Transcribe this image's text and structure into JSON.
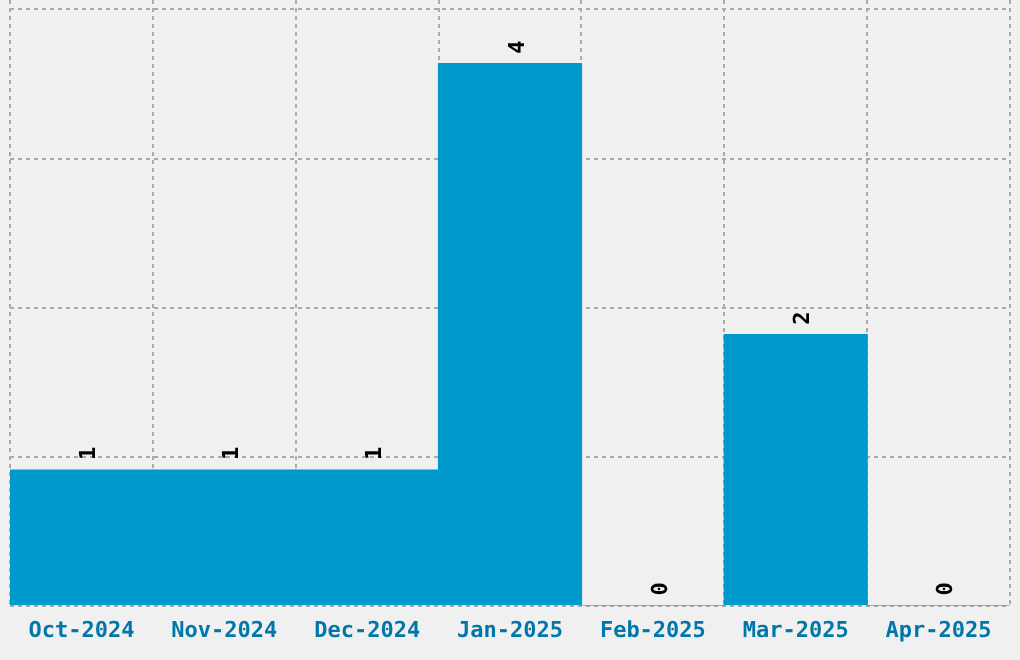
{
  "chart_data": {
    "type": "bar",
    "categories": [
      "Oct-2024",
      "Nov-2024",
      "Dec-2024",
      "Jan-2025",
      "Feb-2025",
      "Mar-2025",
      "Apr-2025"
    ],
    "values": [
      1,
      1,
      1,
      4,
      0,
      2,
      0
    ],
    "color": "#0099cc",
    "ylim": [
      0,
      4.47
    ],
    "yticks": [
      {
        "value": 0,
        "label": null
      },
      {
        "value": 1.1,
        "label": null
      },
      {
        "value": 2.2,
        "label": null
      },
      {
        "value": 3.3,
        "label": null
      },
      {
        "value": 4.4,
        "label": null
      }
    ],
    "tick_labels": "x",
    "grid": true,
    "data_labels": true,
    "legend": false
  }
}
